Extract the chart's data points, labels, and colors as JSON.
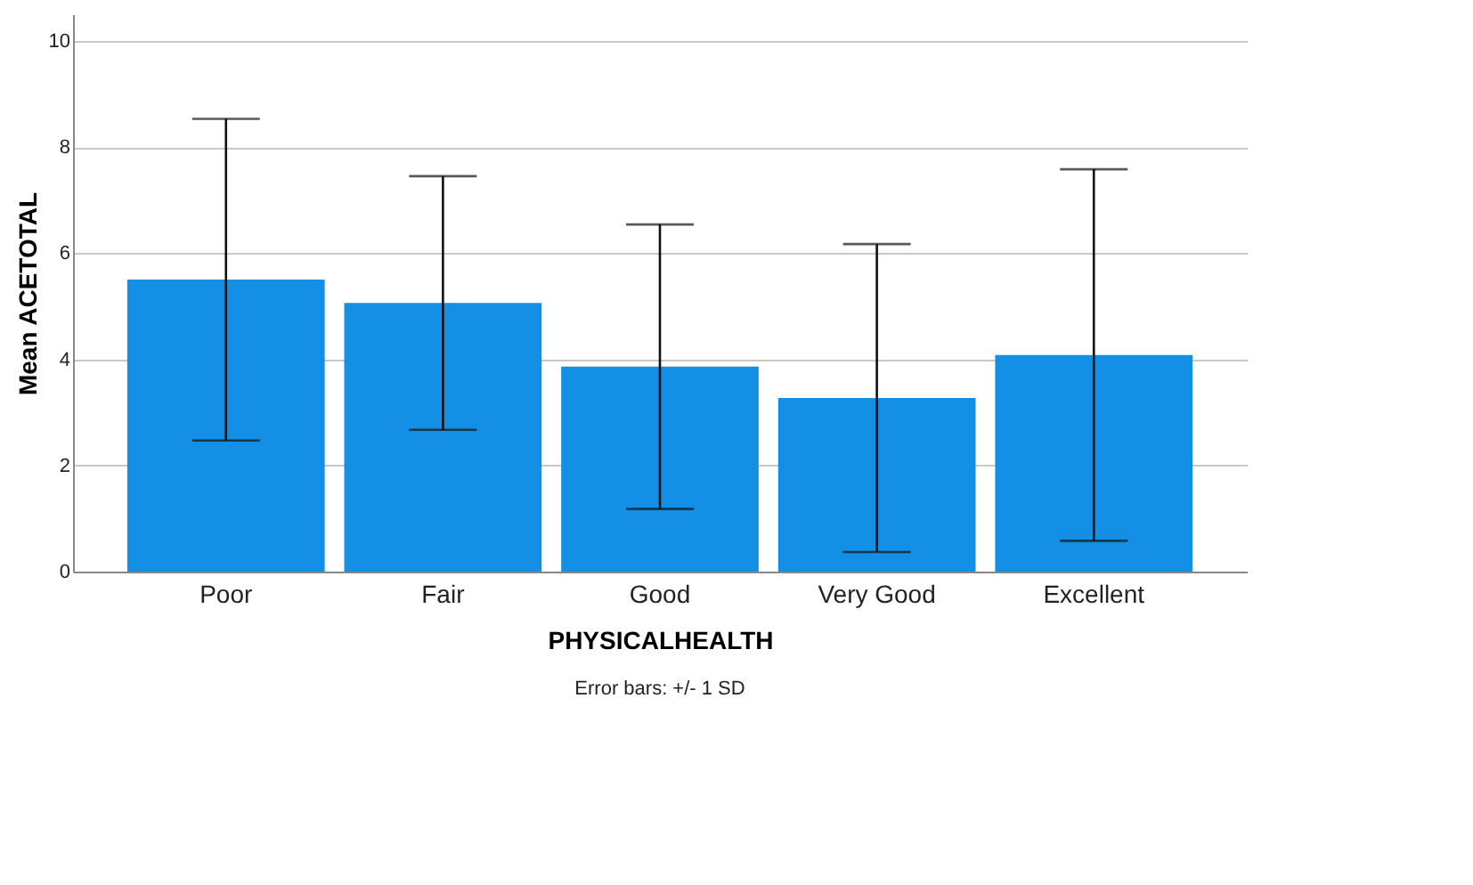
{
  "chart_data": {
    "type": "bar",
    "xlabel": "PHYSICALHEALTH",
    "ylabel": "Mean ACETOTAL",
    "categories": [
      "Poor",
      "Fair",
      "Good",
      "Very Good",
      "Excellent"
    ],
    "values": [
      5.5,
      5.06,
      3.86,
      3.27,
      4.08
    ],
    "errors": [
      3.03,
      2.39,
      2.68,
      2.9,
      3.5
    ],
    "color": "#1390e6",
    "ylim": [
      0,
      10.5
    ],
    "yticks": [
      0,
      2,
      4,
      6,
      8,
      10
    ],
    "grid": "y",
    "annotations": [
      "Error bars: +/- 1 SD"
    ]
  }
}
